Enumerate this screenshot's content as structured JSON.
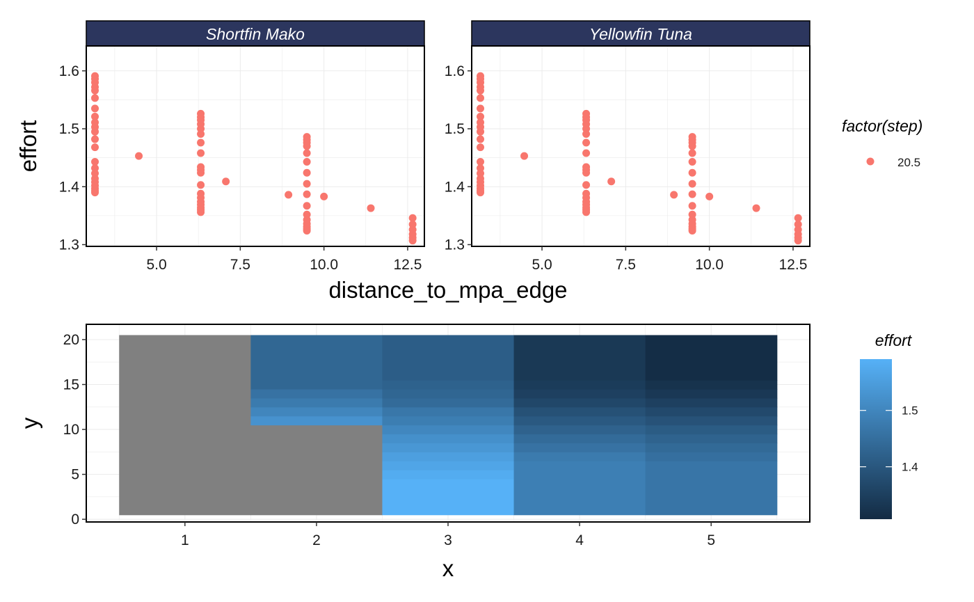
{
  "colors": {
    "point": "#F8766D",
    "strip_fill": "#2C365E",
    "na_tile": "#808080",
    "gradient_low": "#132B43",
    "gradient_high": "#56B1F7",
    "grid": "#ebebeb"
  },
  "chart_data": [
    {
      "type": "scatter",
      "facets": [
        "Shortfin Mako",
        "Yellowfin Tuna"
      ],
      "xlabel": "distance_to_mpa_edge",
      "ylabel": "effort",
      "xlim": [
        2.9,
        13.0
      ],
      "ylim": [
        1.297,
        1.643
      ],
      "x_ticks": [
        5.0,
        7.5,
        10.0,
        12.5
      ],
      "x_tick_labels": [
        "5.0",
        "7.5",
        "10.0",
        "12.5"
      ],
      "y_ticks": [
        1.3,
        1.4,
        1.5,
        1.6
      ],
      "y_tick_labels": [
        "1.3",
        "1.4",
        "1.5",
        "1.6"
      ],
      "grid": true,
      "legend": {
        "title": "factor(step)",
        "entries": [
          "20.5"
        ],
        "placement": "right"
      },
      "series": [
        {
          "name": "20.5",
          "points": [
            [
              3.16,
              1.39
            ],
            [
              3.16,
              1.393
            ],
            [
              3.16,
              1.397
            ],
            [
              3.16,
              1.402
            ],
            [
              3.16,
              1.408
            ],
            [
              3.16,
              1.414
            ],
            [
              3.16,
              1.423
            ],
            [
              3.16,
              1.432
            ],
            [
              3.16,
              1.443
            ],
            [
              3.16,
              1.468
            ],
            [
              3.16,
              1.482
            ],
            [
              3.16,
              1.495
            ],
            [
              3.16,
              1.503
            ],
            [
              3.16,
              1.511
            ],
            [
              3.16,
              1.521
            ],
            [
              3.16,
              1.535
            ],
            [
              3.16,
              1.553
            ],
            [
              3.16,
              1.566
            ],
            [
              3.16,
              1.572
            ],
            [
              3.16,
              1.58
            ],
            [
              3.16,
              1.586
            ],
            [
              3.16,
              1.591
            ],
            [
              4.47,
              1.453
            ],
            [
              6.32,
              1.356
            ],
            [
              6.32,
              1.36
            ],
            [
              6.32,
              1.364
            ],
            [
              6.32,
              1.369
            ],
            [
              6.32,
              1.374
            ],
            [
              6.32,
              1.381
            ],
            [
              6.32,
              1.388
            ],
            [
              6.32,
              1.403
            ],
            [
              6.32,
              1.424
            ],
            [
              6.32,
              1.429
            ],
            [
              6.32,
              1.434
            ],
            [
              6.32,
              1.458
            ],
            [
              6.32,
              1.476
            ],
            [
              6.32,
              1.491
            ],
            [
              6.32,
              1.5
            ],
            [
              6.32,
              1.508
            ],
            [
              6.32,
              1.515
            ],
            [
              6.32,
              1.52
            ],
            [
              6.32,
              1.526
            ],
            [
              7.07,
              1.409
            ],
            [
              8.94,
              1.386
            ],
            [
              9.49,
              1.324
            ],
            [
              9.49,
              1.327
            ],
            [
              9.49,
              1.331
            ],
            [
              9.49,
              1.336
            ],
            [
              9.49,
              1.343
            ],
            [
              9.49,
              1.352
            ],
            [
              9.49,
              1.367
            ],
            [
              9.49,
              1.387
            ],
            [
              9.49,
              1.405
            ],
            [
              9.49,
              1.424
            ],
            [
              9.49,
              1.443
            ],
            [
              9.49,
              1.458
            ],
            [
              9.49,
              1.47
            ],
            [
              9.49,
              1.476
            ],
            [
              9.49,
              1.481
            ],
            [
              9.49,
              1.486
            ],
            [
              10.0,
              1.383
            ],
            [
              11.4,
              1.363
            ],
            [
              12.65,
              1.307
            ],
            [
              12.65,
              1.312
            ],
            [
              12.65,
              1.318
            ],
            [
              12.65,
              1.326
            ],
            [
              12.65,
              1.335
            ],
            [
              12.65,
              1.346
            ]
          ]
        }
      ]
    },
    {
      "type": "heatmap",
      "xlabel": "x",
      "ylabel": "y",
      "xlim": [
        0.25,
        5.75
      ],
      "ylim": [
        -0.3,
        21.7
      ],
      "x_ticks": [
        1,
        2,
        3,
        4,
        5
      ],
      "x_tick_labels": [
        "1",
        "2",
        "3",
        "4",
        "5"
      ],
      "y_ticks": [
        0,
        5,
        10,
        15,
        20
      ],
      "y_tick_labels": [
        "0",
        "5",
        "10",
        "15",
        "20"
      ],
      "grid": true,
      "legend": {
        "title": "effort",
        "type": "colorbar",
        "range": [
          1.307,
          1.591
        ],
        "ticks": [
          1.4,
          1.5
        ],
        "tick_labels": [
          "1.4",
          "1.5"
        ],
        "placement": "right"
      },
      "tiles": [
        {
          "x": 1,
          "y_from": 1,
          "y_to": 20,
          "effort": null
        },
        {
          "x": 2,
          "y_from": 1,
          "y_to": 10,
          "effort": null
        },
        {
          "x": 2,
          "y_from": 11,
          "y_to": 11,
          "effort": 1.526
        },
        {
          "x": 2,
          "y_from": 12,
          "y_to": 12,
          "effort": 1.5
        },
        {
          "x": 2,
          "y_from": 13,
          "y_to": 13,
          "effort": 1.476
        },
        {
          "x": 2,
          "y_from": 14,
          "y_to": 14,
          "effort": 1.458
        },
        {
          "x": 2,
          "y_from": 15,
          "y_to": 20,
          "effort": 1.434
        },
        {
          "x": 3,
          "y_from": 1,
          "y_to": 4,
          "effort": 1.591
        },
        {
          "x": 3,
          "y_from": 5,
          "y_to": 5,
          "effort": 1.58
        },
        {
          "x": 3,
          "y_from": 6,
          "y_to": 6,
          "effort": 1.566
        },
        {
          "x": 3,
          "y_from": 7,
          "y_to": 7,
          "effort": 1.553
        },
        {
          "x": 3,
          "y_from": 8,
          "y_to": 8,
          "effort": 1.535
        },
        {
          "x": 3,
          "y_from": 9,
          "y_to": 9,
          "effort": 1.521
        },
        {
          "x": 3,
          "y_from": 10,
          "y_to": 10,
          "effort": 1.503
        },
        {
          "x": 3,
          "y_from": 11,
          "y_to": 11,
          "effort": 1.482
        },
        {
          "x": 3,
          "y_from": 12,
          "y_to": 12,
          "effort": 1.468
        },
        {
          "x": 3,
          "y_from": 13,
          "y_to": 13,
          "effort": 1.443
        },
        {
          "x": 3,
          "y_from": 14,
          "y_to": 14,
          "effort": 1.432
        },
        {
          "x": 3,
          "y_from": 15,
          "y_to": 15,
          "effort": 1.423
        },
        {
          "x": 3,
          "y_from": 16,
          "y_to": 20,
          "effort": 1.414
        },
        {
          "x": 4,
          "y_from": 1,
          "y_to": 6,
          "effort": 1.486
        },
        {
          "x": 4,
          "y_from": 7,
          "y_to": 7,
          "effort": 1.476
        },
        {
          "x": 4,
          "y_from": 8,
          "y_to": 8,
          "effort": 1.458
        },
        {
          "x": 4,
          "y_from": 9,
          "y_to": 9,
          "effort": 1.443
        },
        {
          "x": 4,
          "y_from": 10,
          "y_to": 10,
          "effort": 1.424
        },
        {
          "x": 4,
          "y_from": 11,
          "y_to": 11,
          "effort": 1.405
        },
        {
          "x": 4,
          "y_from": 12,
          "y_to": 12,
          "effort": 1.387
        },
        {
          "x": 4,
          "y_from": 13,
          "y_to": 13,
          "effort": 1.367
        },
        {
          "x": 4,
          "y_from": 14,
          "y_to": 14,
          "effort": 1.352
        },
        {
          "x": 4,
          "y_from": 15,
          "y_to": 15,
          "effort": 1.343
        },
        {
          "x": 4,
          "y_from": 16,
          "y_to": 20,
          "effort": 1.336
        },
        {
          "x": 5,
          "y_from": 1,
          "y_to": 6,
          "effort": 1.464
        },
        {
          "x": 5,
          "y_from": 7,
          "y_to": 7,
          "effort": 1.452
        },
        {
          "x": 5,
          "y_from": 8,
          "y_to": 8,
          "effort": 1.44
        },
        {
          "x": 5,
          "y_from": 9,
          "y_to": 9,
          "effort": 1.425
        },
        {
          "x": 5,
          "y_from": 10,
          "y_to": 10,
          "effort": 1.41
        },
        {
          "x": 5,
          "y_from": 11,
          "y_to": 11,
          "effort": 1.39
        },
        {
          "x": 5,
          "y_from": 12,
          "y_to": 12,
          "effort": 1.371
        },
        {
          "x": 5,
          "y_from": 13,
          "y_to": 13,
          "effort": 1.352
        },
        {
          "x": 5,
          "y_from": 14,
          "y_to": 14,
          "effort": 1.335
        },
        {
          "x": 5,
          "y_from": 15,
          "y_to": 15,
          "effort": 1.323
        },
        {
          "x": 5,
          "y_from": 16,
          "y_to": 20,
          "effort": 1.312
        }
      ]
    }
  ]
}
